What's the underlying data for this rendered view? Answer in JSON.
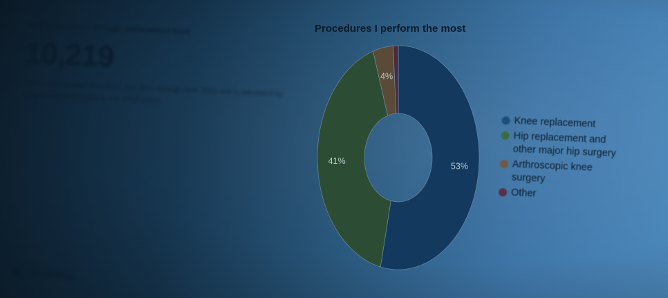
{
  "stats": {
    "heading": "Total procedures through replacement team",
    "value": "10,219",
    "description": "This is total number done from July 2014 through June 2016 and is calculated by surgeon-reported totals & only BPCI cases."
  },
  "bottom_tab": {
    "label": "Training"
  },
  "chart_data": {
    "type": "pie",
    "donut": true,
    "title": "Procedures I perform the most",
    "slices": [
      {
        "label": "Knee replacement",
        "value": 53,
        "display": "53%",
        "color": "#133a5e"
      },
      {
        "label": "Hip replacement and other major hip surgery",
        "value": 41,
        "display": "41%",
        "color": "#2c4d33"
      },
      {
        "label": "Arthroscopic knee surgery",
        "value": 4,
        "display": "4%",
        "color": "#5a4a38"
      },
      {
        "label": "Other",
        "value": 1,
        "display": "",
        "color": "#4a2a3c"
      }
    ],
    "start_angle_deg": 0,
    "direction": "clockwise",
    "legend_position": "right"
  },
  "legend": {
    "items": [
      {
        "label": "Knee replacement",
        "color": "#1d4f7e"
      },
      {
        "label": "Hip replacement and other major hip surgery",
        "color": "#3e6a45"
      },
      {
        "label": "Arthroscopic knee surgery",
        "color": "#6f5a44"
      },
      {
        "label": "Other",
        "color": "#5a3046"
      }
    ]
  }
}
